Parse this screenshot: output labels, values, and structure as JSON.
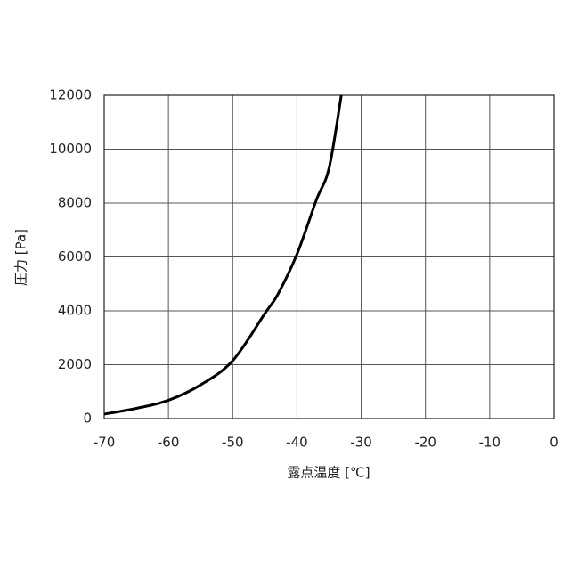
{
  "chart_data": {
    "type": "line",
    "x_label": "露点温度 [℃]",
    "y_label": "圧力 [Pa]",
    "x": [
      -70,
      -65,
      -60,
      -55,
      -50,
      -45,
      -43,
      -40,
      -37,
      -35,
      -33.1
    ],
    "values": [
      165,
      380,
      680,
      1250,
      2150,
      3900,
      4600,
      6100,
      8100,
      9300,
      12000
    ],
    "color": "#000000",
    "xlim": [
      -70,
      0
    ],
    "xticks": [
      -70,
      -60,
      -50,
      -40,
      -30,
      -20,
      -10,
      0
    ],
    "ylim": [
      0,
      12000
    ],
    "yticks": [
      0,
      2000,
      4000,
      6000,
      8000,
      10000,
      12000
    ],
    "grid": true
  }
}
